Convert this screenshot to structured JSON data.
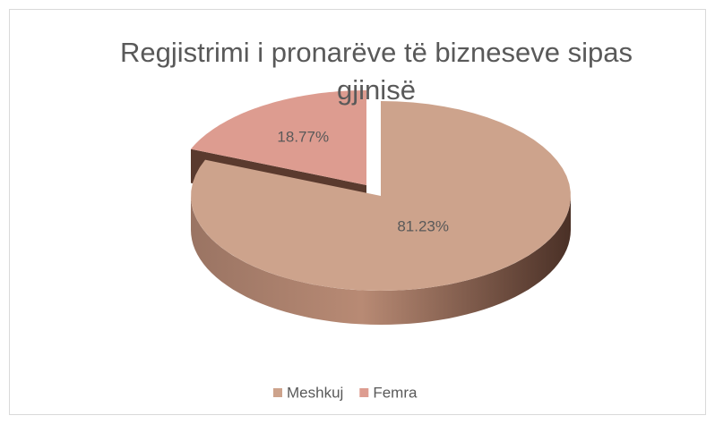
{
  "chart_data": {
    "type": "pie",
    "title": "Regjistrimi i pronarëve të bizneseve sipas gjinisë",
    "categories": [
      "Meshkuj",
      "Femra"
    ],
    "values": [
      81.23,
      18.77
    ],
    "value_labels": [
      "81.23%",
      "18.77%"
    ],
    "colors": [
      "#cda38c",
      "#dd9c90"
    ],
    "legend": "bottom"
  }
}
